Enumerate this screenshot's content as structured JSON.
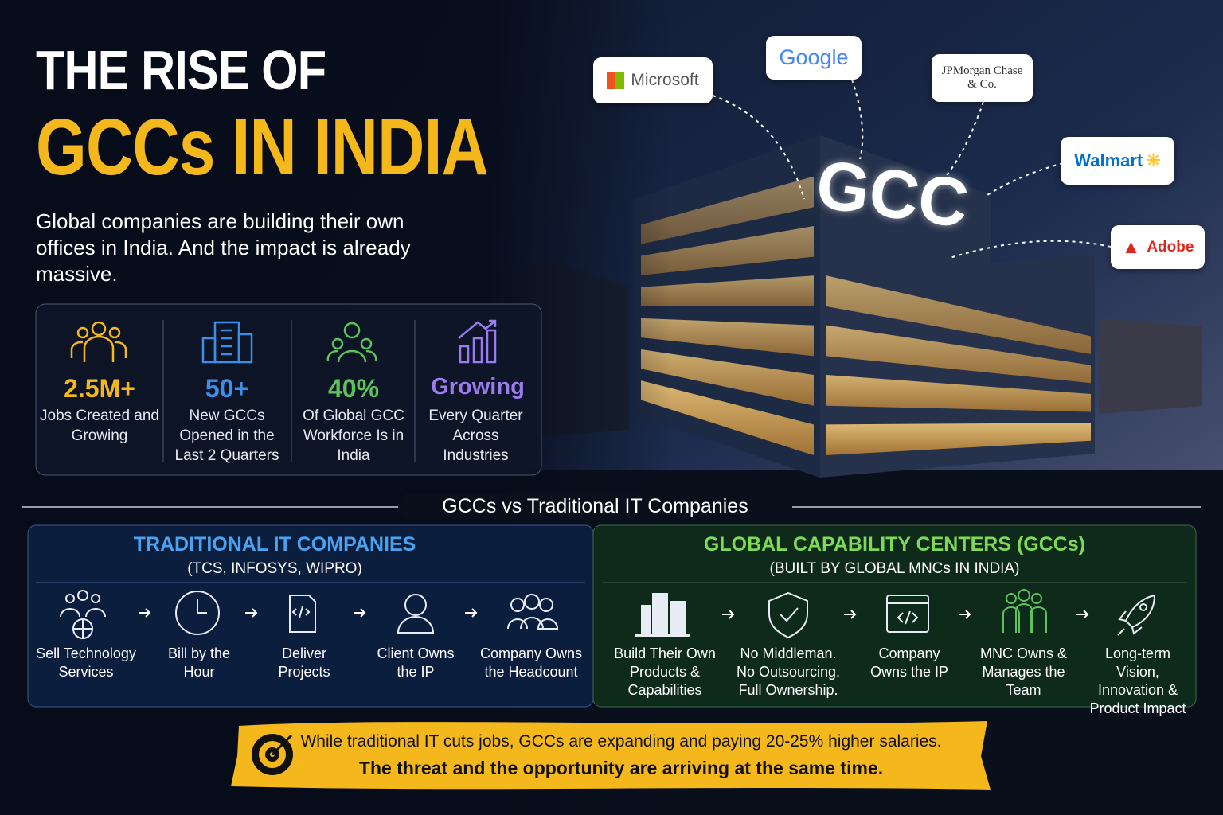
{
  "header": {
    "title_line1": "THE RISE OF",
    "title_line2": "GCCs IN INDIA",
    "subtitle": "Global companies are building their own offices in India. And the impact is already massive."
  },
  "stats": [
    {
      "value": "2.5M+",
      "label": "Jobs Created and Growing"
    },
    {
      "value": "50+",
      "label": "New GCCs Opened in the Last 2 Quarters"
    },
    {
      "value": "40%",
      "label": "Of Global GCC Workforce Is in India"
    },
    {
      "value": "Growing",
      "label": "Every Quarter Across Industries"
    }
  ],
  "building_sign": "GCC",
  "logos": [
    "Microsoft",
    "Google",
    "JPMorgan Chase & Co.",
    "Walmart",
    "Adobe"
  ],
  "comparison": {
    "title": "GCCs vs Traditional IT Companies",
    "traditional": {
      "title": "TRADITIONAL IT COMPANIES",
      "subtitle": "(TCS, INFOSYS, WIPRO)",
      "steps": [
        "Sell Technology Services",
        "Bill by the Hour",
        "Deliver Projects",
        "Client Owns the IP",
        "Company Owns the Headcount"
      ]
    },
    "gcc": {
      "title": "GLOBAL CAPABILITY CENTERS (GCCs)",
      "subtitle": "(BUILT BY GLOBAL MNCs IN INDIA)",
      "steps": [
        "Build Their Own Products & Capabilities",
        "No Middleman. No Outsourcing. Full Ownership.",
        "Company Owns the IP",
        "MNC Owns & Manages the Team",
        "Long-term Vision, Innovation & Product Impact"
      ]
    }
  },
  "footer": {
    "line1": "While traditional IT cuts jobs, GCCs are expanding and paying 20-25% higher salaries.",
    "line2": "The threat and the opportunity are arriving at the same time."
  }
}
